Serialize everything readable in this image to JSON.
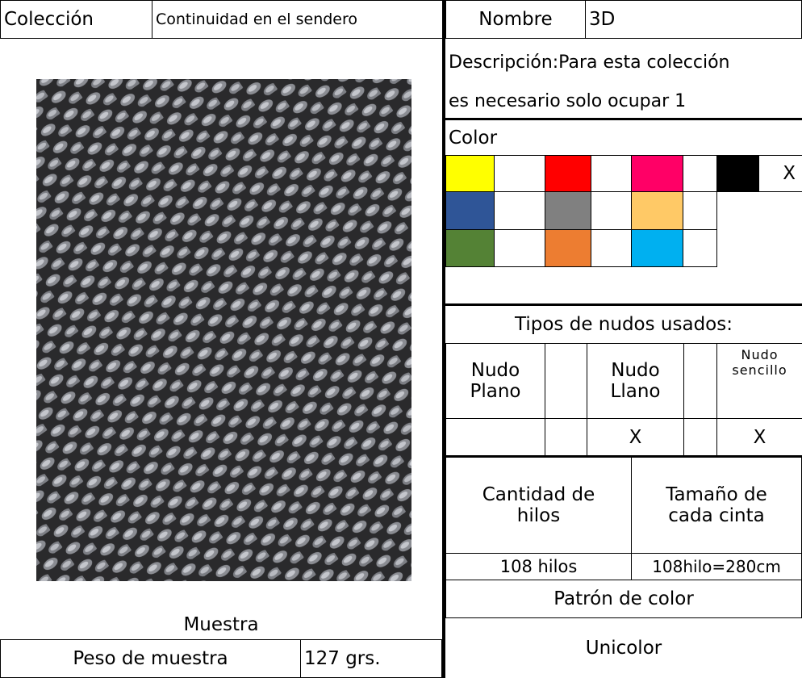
{
  "header": {
    "collection_label": "Colección",
    "collection": "Continuidad en el sendero",
    "name_label": "Nombre",
    "name": "3D"
  },
  "description": {
    "lines": [
      "Descripción:Para esta colección",
      "es necesario solo ocupar 1"
    ]
  },
  "color": {
    "label": "Color",
    "rows": [
      [
        {
          "fill": "#ffff00"
        },
        {
          "fill": "#ffffff"
        },
        {
          "fill": "#ff0000"
        },
        {
          "fill": "#ffffff"
        },
        {
          "fill": "#ff0066"
        },
        {
          "fill": "#ffffff"
        },
        {
          "fill": "#000000"
        },
        {
          "fill": "#ffffff",
          "mark": "X"
        }
      ],
      [
        {
          "fill": "#2f5597"
        },
        {
          "fill": "#ffffff"
        },
        {
          "fill": "#808080"
        },
        {
          "fill": "#ffffff"
        },
        {
          "fill": "#ffc966"
        },
        {
          "fill": "#ffffff"
        }
      ],
      [
        {
          "fill": "#548235"
        },
        {
          "fill": "#ffffff"
        },
        {
          "fill": "#ed7d31"
        },
        {
          "fill": "#ffffff"
        },
        {
          "fill": "#00b0f0"
        },
        {
          "fill": "#ffffff"
        }
      ]
    ]
  },
  "knots": {
    "title": "Tipos de nudos usados:",
    "columns": [
      {
        "name": [
          "Nudo",
          "Plano"
        ],
        "mark": null
      },
      {
        "name": null,
        "mark": null
      },
      {
        "name": [
          "Nudo",
          "Llano"
        ],
        "mark": "X"
      },
      {
        "name": null,
        "mark": null
      },
      {
        "name": [
          "Nudo",
          "sencillo"
        ],
        "mark": "X"
      }
    ]
  },
  "threads": {
    "count_label": [
      "Cantidad de",
      "hilos"
    ],
    "count": "108 hilos",
    "size_label": [
      "Tamaño de",
      "cada cinta"
    ],
    "size": "108hilo=280cm"
  },
  "pattern": {
    "label": "Patrón de  color",
    "value": "Unicolor"
  },
  "sample": {
    "label": "Muestra",
    "weight_label": "Peso de muestra",
    "weight": "127 grs."
  }
}
